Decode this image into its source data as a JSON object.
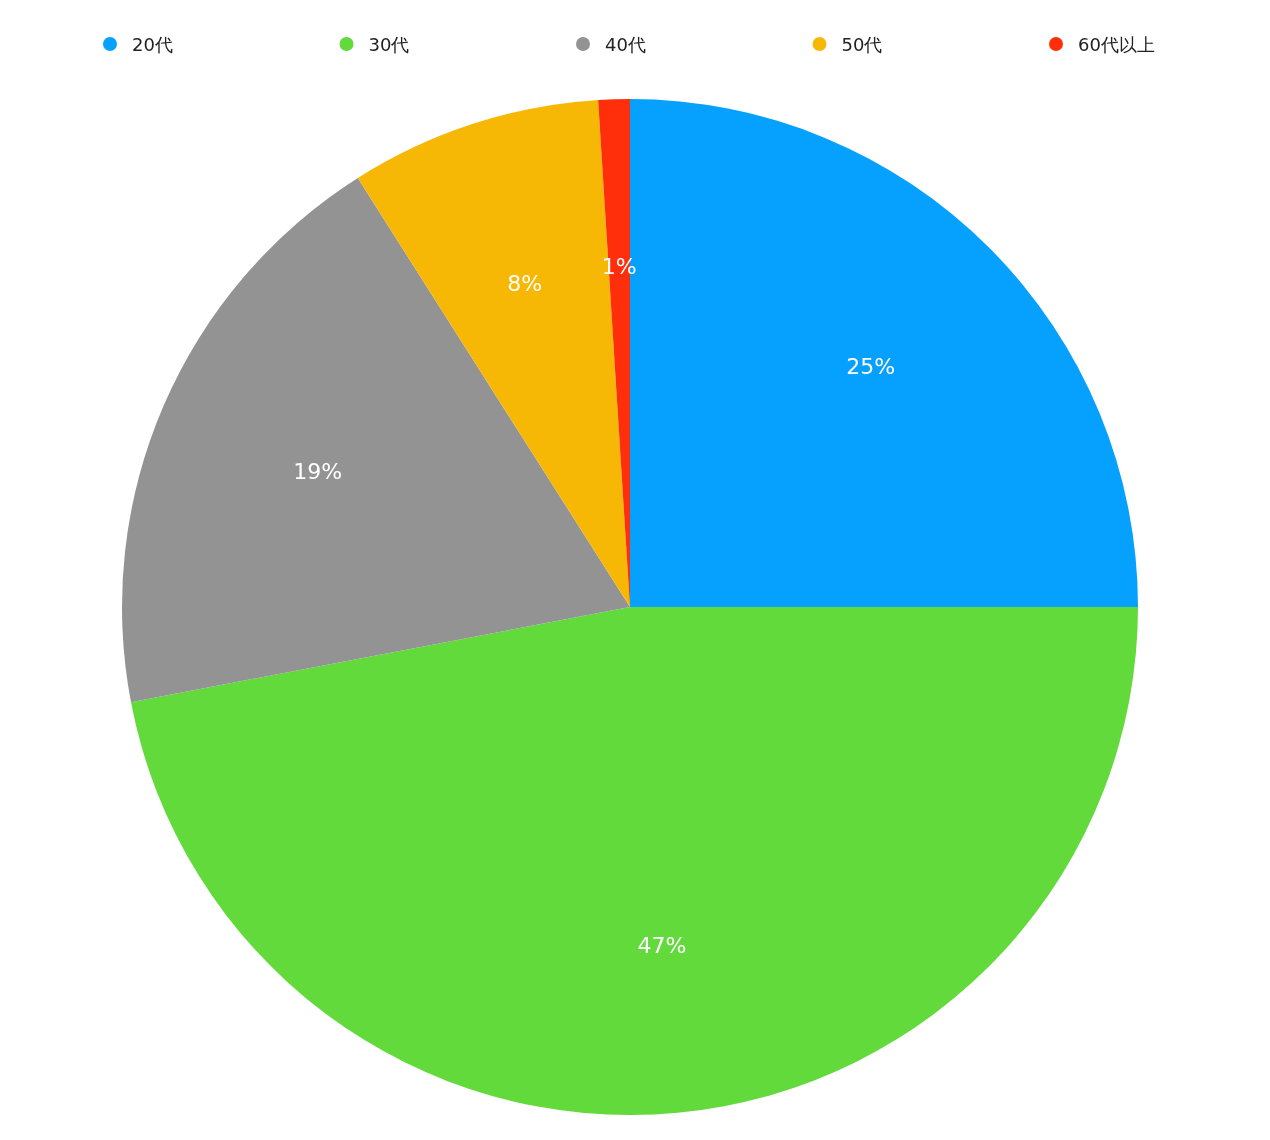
{
  "chart_data": {
    "type": "pie",
    "categories": [
      "20代",
      "30代",
      "40代",
      "50代",
      "60代以上"
    ],
    "values": [
      25,
      47,
      19,
      8,
      1
    ],
    "colors": [
      "#06a1ff",
      "#63da3b",
      "#939393",
      "#f7b805",
      "#ff2e0b"
    ],
    "value_labels": [
      "25%",
      "47%",
      "19%",
      "8%",
      "1%"
    ],
    "legend": "top"
  }
}
